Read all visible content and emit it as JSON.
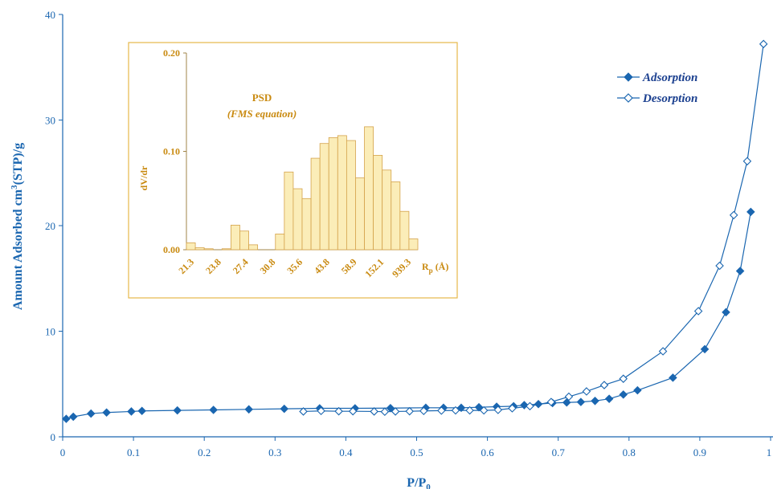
{
  "chart_data": [
    {
      "type": "line",
      "xlabel": "P/P",
      "xlabel_sub": "0",
      "ylabel": "Amount Adsorbed cm",
      "ylabel_sup": "3",
      "ylabel_rest": "(STP)/g",
      "xlim": [
        0,
        1
      ],
      "ylim": [
        0,
        40
      ],
      "x_ticks": [
        "0",
        "0.1",
        "0.2",
        "0.3",
        "0.4",
        "0.5",
        "0.6",
        "0.7",
        "0.8",
        "0.9",
        "1"
      ],
      "y_ticks": [
        "0",
        "10",
        "20",
        "30",
        "40"
      ],
      "grid": false,
      "legend_position": "top-right",
      "colors": {
        "main": "#1a66b0",
        "legend_text": "#1a3f8f"
      },
      "series": [
        {
          "name": "Adsorption",
          "marker": "filled-diamond",
          "x": [
            0.005,
            0.015,
            0.04,
            0.062,
            0.097,
            0.112,
            0.162,
            0.213,
            0.263,
            0.313,
            0.363,
            0.413,
            0.463,
            0.513,
            0.538,
            0.563,
            0.588,
            0.613,
            0.637,
            0.652,
            0.672,
            0.692,
            0.712,
            0.732,
            0.752,
            0.772,
            0.792,
            0.812,
            0.862,
            0.907,
            0.937,
            0.957,
            0.972
          ],
          "y": [
            1.7,
            1.9,
            2.2,
            2.3,
            2.4,
            2.45,
            2.5,
            2.55,
            2.6,
            2.65,
            2.7,
            2.7,
            2.72,
            2.75,
            2.75,
            2.75,
            2.8,
            2.85,
            2.9,
            3.0,
            3.1,
            3.2,
            3.25,
            3.3,
            3.4,
            3.6,
            4.0,
            4.4,
            5.6,
            8.3,
            11.8,
            15.7,
            21.3
          ]
        },
        {
          "name": "Desorption",
          "marker": "open-diamond",
          "x": [
            0.34,
            0.365,
            0.39,
            0.41,
            0.44,
            0.455,
            0.47,
            0.49,
            0.51,
            0.535,
            0.555,
            0.575,
            0.595,
            0.615,
            0.635,
            0.66,
            0.69,
            0.715,
            0.74,
            0.765,
            0.792,
            0.848,
            0.898,
            0.928,
            0.948,
            0.967,
            0.99
          ],
          "y": [
            2.4,
            2.45,
            2.42,
            2.42,
            2.4,
            2.38,
            2.4,
            2.42,
            2.45,
            2.48,
            2.5,
            2.5,
            2.5,
            2.55,
            2.7,
            2.9,
            3.3,
            3.8,
            4.3,
            4.9,
            5.5,
            8.1,
            11.9,
            16.2,
            21.0,
            26.1,
            37.2
          ]
        }
      ]
    },
    {
      "type": "bar",
      "title": "PSD",
      "subtitle": "(FMS equation)",
      "ylabel": "dV/dr",
      "xlabel": "R",
      "xlabel_sub": "p",
      "xlabel_unit": " (Å)",
      "ylim": [
        0,
        0.2
      ],
      "y_ticks": [
        "0.00",
        "0.10",
        "0.20"
      ],
      "x_tick_labels": [
        "21.3",
        "23.8",
        "27.4",
        "30.8",
        "35.6",
        "43.8",
        "58.9",
        "152.1",
        "939.3"
      ],
      "values": [
        0.007,
        0.002,
        0.001,
        0.0,
        0.001,
        0.025,
        0.019,
        0.005,
        0.0,
        0.0,
        0.016,
        0.079,
        0.062,
        0.052,
        0.093,
        0.108,
        0.114,
        0.116,
        0.111,
        0.073,
        0.125,
        0.096,
        0.081,
        0.069,
        0.039,
        0.011
      ],
      "grid": false,
      "colors": {
        "bar_fill": "#fbedb8",
        "bar_stroke": "#d4a24a",
        "text": "#c98a10",
        "frame": "#e6b84a",
        "axis": "#a08448"
      }
    }
  ]
}
